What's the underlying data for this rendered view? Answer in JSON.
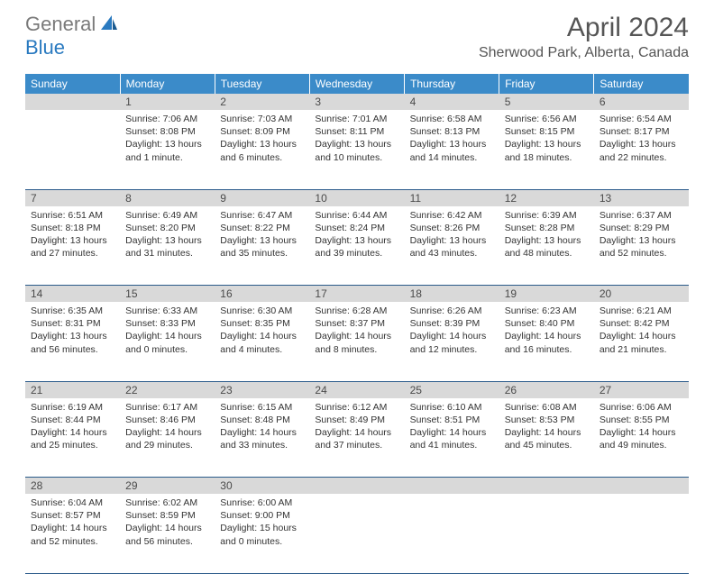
{
  "logo": {
    "part1": "General",
    "part2": "Blue"
  },
  "title": "April 2024",
  "location": "Sherwood Park, Alberta, Canada",
  "colors": {
    "header_bg": "#3b8bc9",
    "daynum_bg": "#d9d9d9",
    "row_border": "#2a5a8a",
    "logo_gray": "#7a7a7a",
    "logo_blue": "#2a7ac0"
  },
  "weekdays": [
    "Sunday",
    "Monday",
    "Tuesday",
    "Wednesday",
    "Thursday",
    "Friday",
    "Saturday"
  ],
  "weeks": [
    [
      null,
      {
        "n": "1",
        "sr": "Sunrise: 7:06 AM",
        "ss": "Sunset: 8:08 PM",
        "dl": "Daylight: 13 hours and 1 minute."
      },
      {
        "n": "2",
        "sr": "Sunrise: 7:03 AM",
        "ss": "Sunset: 8:09 PM",
        "dl": "Daylight: 13 hours and 6 minutes."
      },
      {
        "n": "3",
        "sr": "Sunrise: 7:01 AM",
        "ss": "Sunset: 8:11 PM",
        "dl": "Daylight: 13 hours and 10 minutes."
      },
      {
        "n": "4",
        "sr": "Sunrise: 6:58 AM",
        "ss": "Sunset: 8:13 PM",
        "dl": "Daylight: 13 hours and 14 minutes."
      },
      {
        "n": "5",
        "sr": "Sunrise: 6:56 AM",
        "ss": "Sunset: 8:15 PM",
        "dl": "Daylight: 13 hours and 18 minutes."
      },
      {
        "n": "6",
        "sr": "Sunrise: 6:54 AM",
        "ss": "Sunset: 8:17 PM",
        "dl": "Daylight: 13 hours and 22 minutes."
      }
    ],
    [
      {
        "n": "7",
        "sr": "Sunrise: 6:51 AM",
        "ss": "Sunset: 8:18 PM",
        "dl": "Daylight: 13 hours and 27 minutes."
      },
      {
        "n": "8",
        "sr": "Sunrise: 6:49 AM",
        "ss": "Sunset: 8:20 PM",
        "dl": "Daylight: 13 hours and 31 minutes."
      },
      {
        "n": "9",
        "sr": "Sunrise: 6:47 AM",
        "ss": "Sunset: 8:22 PM",
        "dl": "Daylight: 13 hours and 35 minutes."
      },
      {
        "n": "10",
        "sr": "Sunrise: 6:44 AM",
        "ss": "Sunset: 8:24 PM",
        "dl": "Daylight: 13 hours and 39 minutes."
      },
      {
        "n": "11",
        "sr": "Sunrise: 6:42 AM",
        "ss": "Sunset: 8:26 PM",
        "dl": "Daylight: 13 hours and 43 minutes."
      },
      {
        "n": "12",
        "sr": "Sunrise: 6:39 AM",
        "ss": "Sunset: 8:28 PM",
        "dl": "Daylight: 13 hours and 48 minutes."
      },
      {
        "n": "13",
        "sr": "Sunrise: 6:37 AM",
        "ss": "Sunset: 8:29 PM",
        "dl": "Daylight: 13 hours and 52 minutes."
      }
    ],
    [
      {
        "n": "14",
        "sr": "Sunrise: 6:35 AM",
        "ss": "Sunset: 8:31 PM",
        "dl": "Daylight: 13 hours and 56 minutes."
      },
      {
        "n": "15",
        "sr": "Sunrise: 6:33 AM",
        "ss": "Sunset: 8:33 PM",
        "dl": "Daylight: 14 hours and 0 minutes."
      },
      {
        "n": "16",
        "sr": "Sunrise: 6:30 AM",
        "ss": "Sunset: 8:35 PM",
        "dl": "Daylight: 14 hours and 4 minutes."
      },
      {
        "n": "17",
        "sr": "Sunrise: 6:28 AM",
        "ss": "Sunset: 8:37 PM",
        "dl": "Daylight: 14 hours and 8 minutes."
      },
      {
        "n": "18",
        "sr": "Sunrise: 6:26 AM",
        "ss": "Sunset: 8:39 PM",
        "dl": "Daylight: 14 hours and 12 minutes."
      },
      {
        "n": "19",
        "sr": "Sunrise: 6:23 AM",
        "ss": "Sunset: 8:40 PM",
        "dl": "Daylight: 14 hours and 16 minutes."
      },
      {
        "n": "20",
        "sr": "Sunrise: 6:21 AM",
        "ss": "Sunset: 8:42 PM",
        "dl": "Daylight: 14 hours and 21 minutes."
      }
    ],
    [
      {
        "n": "21",
        "sr": "Sunrise: 6:19 AM",
        "ss": "Sunset: 8:44 PM",
        "dl": "Daylight: 14 hours and 25 minutes."
      },
      {
        "n": "22",
        "sr": "Sunrise: 6:17 AM",
        "ss": "Sunset: 8:46 PM",
        "dl": "Daylight: 14 hours and 29 minutes."
      },
      {
        "n": "23",
        "sr": "Sunrise: 6:15 AM",
        "ss": "Sunset: 8:48 PM",
        "dl": "Daylight: 14 hours and 33 minutes."
      },
      {
        "n": "24",
        "sr": "Sunrise: 6:12 AM",
        "ss": "Sunset: 8:49 PM",
        "dl": "Daylight: 14 hours and 37 minutes."
      },
      {
        "n": "25",
        "sr": "Sunrise: 6:10 AM",
        "ss": "Sunset: 8:51 PM",
        "dl": "Daylight: 14 hours and 41 minutes."
      },
      {
        "n": "26",
        "sr": "Sunrise: 6:08 AM",
        "ss": "Sunset: 8:53 PM",
        "dl": "Daylight: 14 hours and 45 minutes."
      },
      {
        "n": "27",
        "sr": "Sunrise: 6:06 AM",
        "ss": "Sunset: 8:55 PM",
        "dl": "Daylight: 14 hours and 49 minutes."
      }
    ],
    [
      {
        "n": "28",
        "sr": "Sunrise: 6:04 AM",
        "ss": "Sunset: 8:57 PM",
        "dl": "Daylight: 14 hours and 52 minutes."
      },
      {
        "n": "29",
        "sr": "Sunrise: 6:02 AM",
        "ss": "Sunset: 8:59 PM",
        "dl": "Daylight: 14 hours and 56 minutes."
      },
      {
        "n": "30",
        "sr": "Sunrise: 6:00 AM",
        "ss": "Sunset: 9:00 PM",
        "dl": "Daylight: 15 hours and 0 minutes."
      },
      null,
      null,
      null,
      null
    ]
  ]
}
